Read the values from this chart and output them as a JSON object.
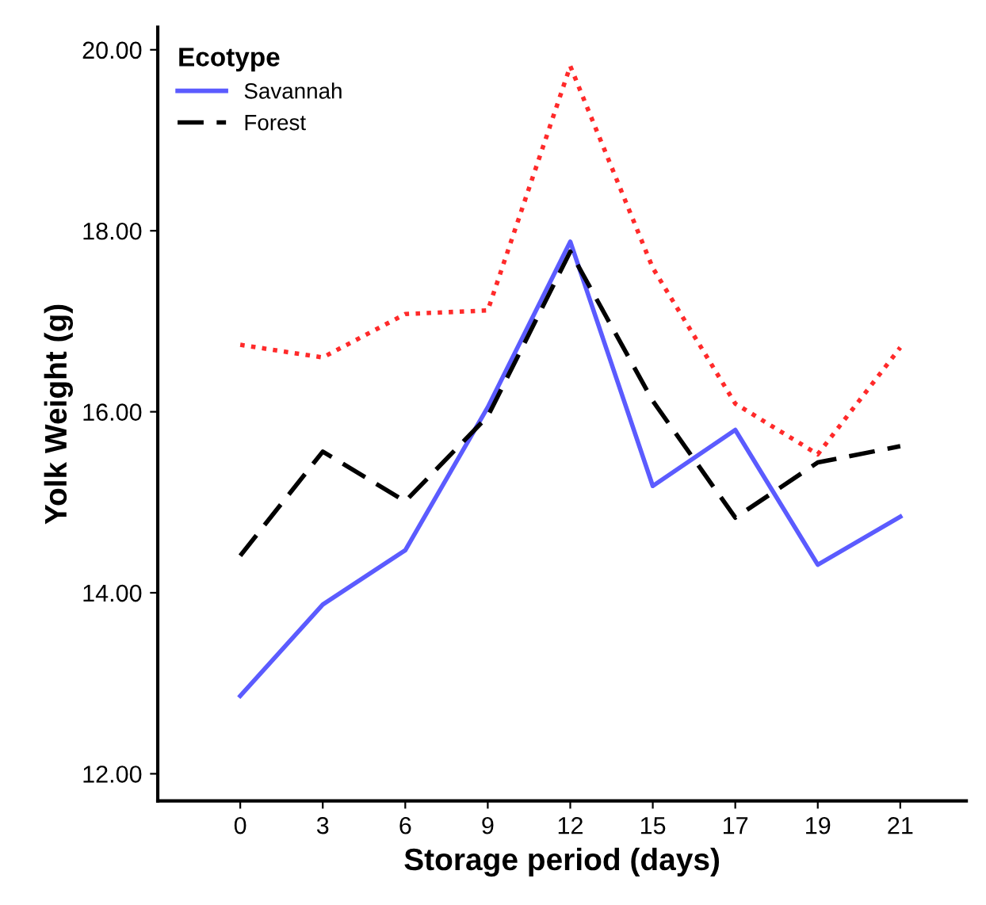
{
  "chart_data": {
    "type": "line",
    "xlabel": "Storage period (days)",
    "ylabel": "Yolk Weight (g)",
    "legend_title": "Ecotype",
    "categories": [
      "0",
      "3",
      "6",
      "9",
      "12",
      "15",
      "17",
      "19",
      "21"
    ],
    "series": [
      {
        "name": "Savannah",
        "color": "#5b5bff",
        "line_style": "solid",
        "values": [
          12.86,
          13.87,
          14.47,
          16.05,
          17.88,
          15.18,
          15.8,
          14.31,
          14.84
        ]
      },
      {
        "name": "Forest",
        "color": "#000000",
        "line_style": "dashed",
        "values": [
          14.41,
          15.56,
          15.01,
          15.95,
          17.77,
          16.12,
          14.83,
          15.44,
          15.62
        ]
      },
      {
        "color": "#ff2a2a",
        "line_style": "dotted",
        "values": [
          16.74,
          16.6,
          17.08,
          17.12,
          19.82,
          17.59,
          16.09,
          15.53,
          16.71
        ]
      }
    ],
    "ylim": [
      11.7,
      20.25
    ],
    "yticks": [
      {
        "value": 12,
        "label": "12.00"
      },
      {
        "value": 14,
        "label": "14.00"
      },
      {
        "value": 16,
        "label": "16.00"
      },
      {
        "value": 18,
        "label": "18.00"
      },
      {
        "value": 20,
        "label": "20.00"
      }
    ],
    "grid": false,
    "legend": "top left",
    "marker": "none"
  }
}
